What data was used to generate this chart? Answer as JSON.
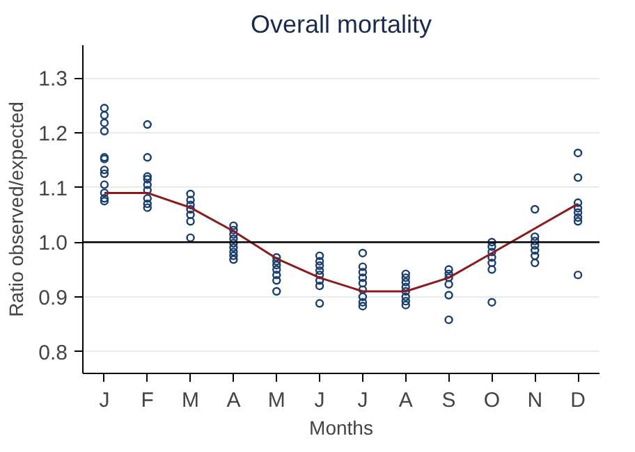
{
  "chart_data": {
    "type": "scatter",
    "title": "Overall mortality",
    "xlabel": "Months",
    "ylabel": "Ratio observed/expected",
    "categories": [
      "J",
      "F",
      "M",
      "A",
      "M",
      "J",
      "J",
      "A",
      "S",
      "O",
      "N",
      "D"
    ],
    "ylim": [
      0.76,
      1.36
    ],
    "yticks": [
      0.8,
      0.9,
      {
        "value": 1.0,
        "label": "1.0"
      },
      1.1,
      1.2,
      1.3
    ],
    "grid": "y",
    "marker": "circle",
    "ref_lines": [
      {
        "axis": "y",
        "value": 1.0,
        "color": "#000000"
      }
    ],
    "series": [
      {
        "color": "#1a3e6e",
        "values": [
          1.245,
          1.215,
          1.088,
          1.03,
          0.972,
          0.975,
          0.98,
          0.942,
          0.95,
          1.0,
          1.06,
          1.163
        ]
      },
      {
        "color": "#1a3e6e",
        "values": [
          1.232,
          1.155,
          1.077,
          1.022,
          0.965,
          0.965,
          0.955,
          0.935,
          0.942,
          0.992,
          1.01,
          1.118
        ]
      },
      {
        "color": "#1a3e6e",
        "values": [
          1.218,
          1.12,
          1.068,
          1.014,
          0.958,
          0.957,
          0.945,
          0.927,
          0.935,
          0.982,
          1.002,
          1.072
        ]
      },
      {
        "color": "#1a3e6e",
        "values": [
          1.203,
          1.115,
          1.06,
          1.006,
          0.95,
          0.948,
          0.935,
          0.918,
          0.923,
          0.972,
          0.994,
          1.062
        ]
      },
      {
        "color": "#1a3e6e",
        "values": [
          1.155,
          1.105,
          1.05,
          0.998,
          0.94,
          0.94,
          0.925,
          0.91,
          0.903,
          0.962,
          0.985,
          1.054
        ]
      },
      {
        "color": "#1a3e6e",
        "values": [
          1.152,
          1.095,
          1.038,
          0.99,
          0.93,
          0.93,
          0.913,
          0.9,
          0.858,
          0.95,
          0.975,
          1.045
        ]
      },
      {
        "color": "#1a3e6e",
        "values": [
          1.132,
          1.08,
          1.008,
          0.982,
          0.91,
          0.92,
          0.9,
          0.892,
          null,
          0.89,
          0.962,
          1.038
        ]
      },
      {
        "color": "#1a3e6e",
        "values": [
          1.125,
          1.07,
          null,
          0.975,
          null,
          0.888,
          0.89,
          0.885,
          null,
          null,
          null,
          0.94
        ]
      },
      {
        "color": "#1a3e6e",
        "values": [
          1.105,
          1.063,
          null,
          0.968,
          null,
          null,
          0.883,
          null,
          null,
          null,
          null,
          null
        ]
      },
      {
        "color": "#1a3e6e",
        "values": [
          1.09,
          null,
          null,
          null,
          null,
          null,
          null,
          null,
          null,
          null,
          null,
          null
        ]
      },
      {
        "color": "#1a3e6e",
        "values": [
          1.08,
          null,
          null,
          null,
          null,
          null,
          null,
          null,
          null,
          null,
          null,
          null
        ]
      },
      {
        "color": "#1a3e6e",
        "values": [
          1.075,
          null,
          null,
          null,
          null,
          null,
          null,
          null,
          null,
          null,
          null,
          null
        ]
      },
      {
        "type": "line",
        "marker": "none",
        "line_style": "solid",
        "color": "#8b1a1a",
        "values": [
          1.09,
          1.09,
          1.063,
          1.02,
          0.97,
          0.935,
          0.91,
          0.91,
          0.935,
          0.98,
          1.025,
          1.07
        ]
      }
    ]
  }
}
